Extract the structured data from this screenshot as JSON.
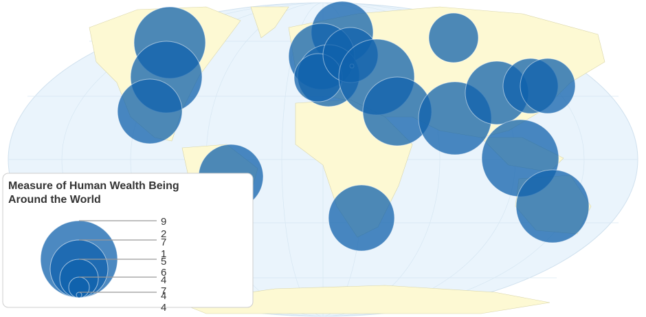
{
  "legend": {
    "title_lines": [
      "Measure of Human Wealth Being",
      "Around the World"
    ],
    "labels": [
      "9",
      "2",
      "7",
      "1",
      "5",
      "6",
      "4",
      "7",
      "4",
      "4"
    ]
  }
}
